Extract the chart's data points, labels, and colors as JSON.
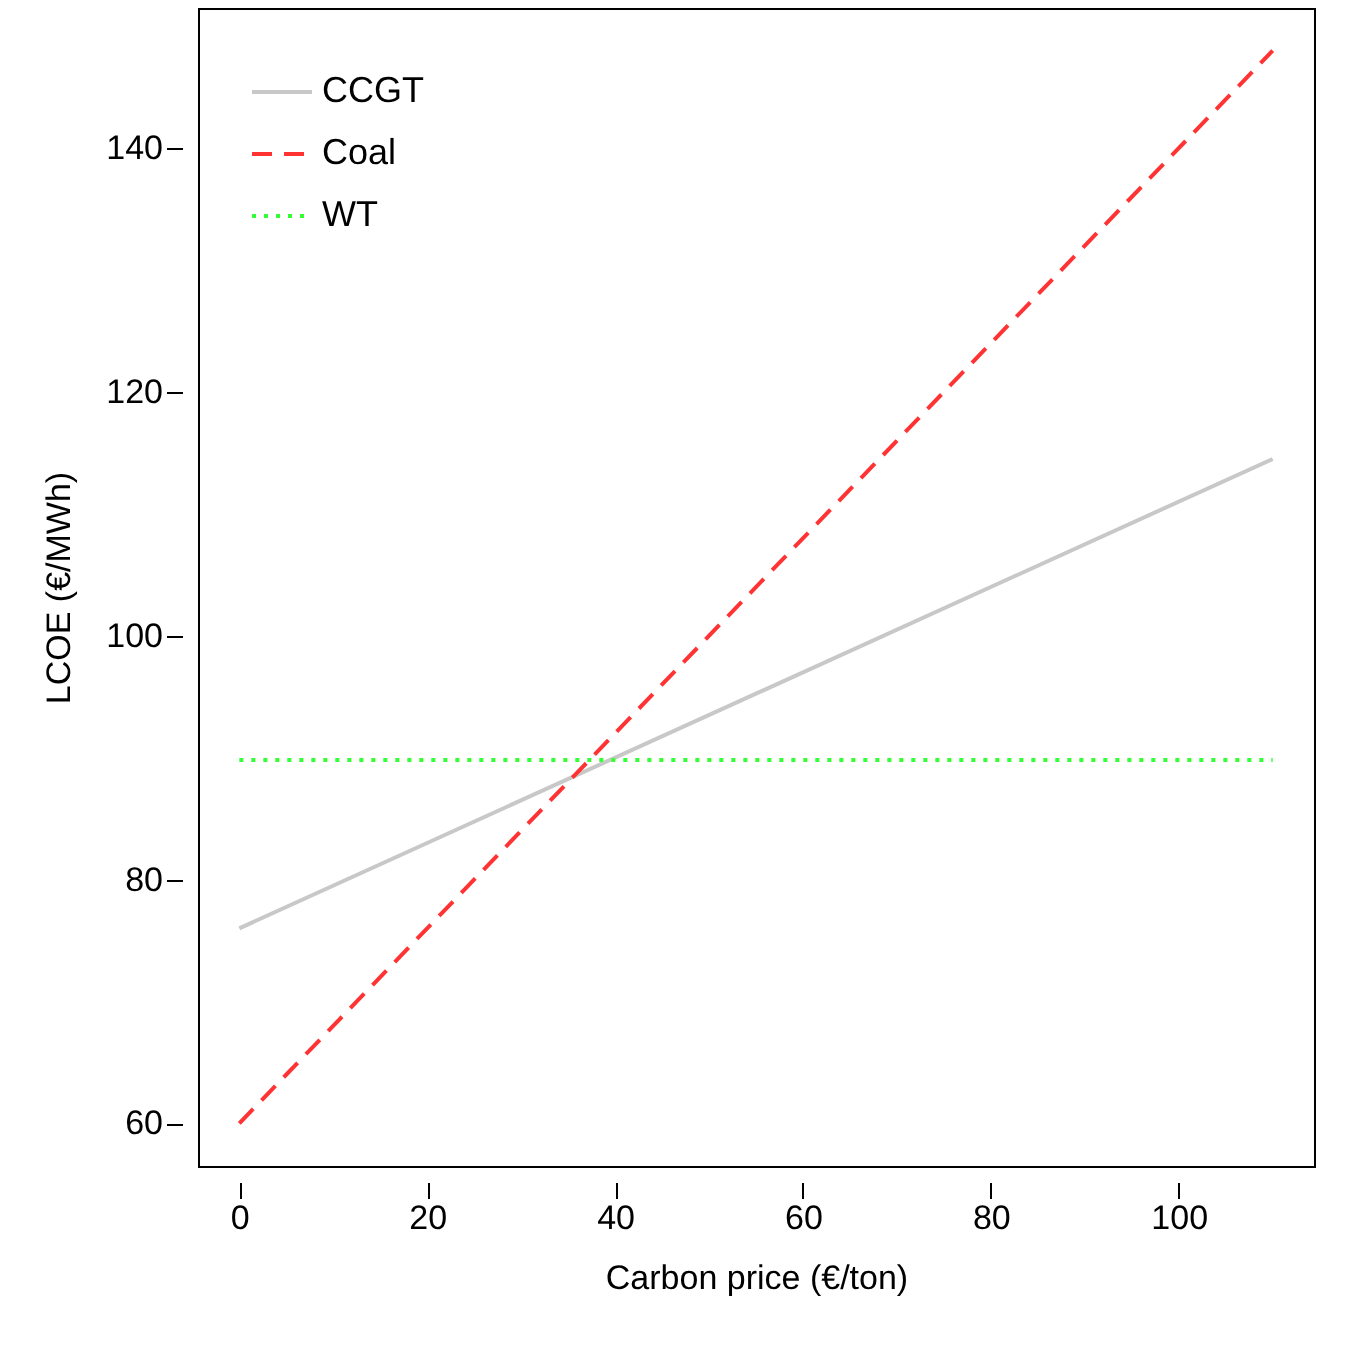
{
  "chart_data": {
    "type": "line",
    "xlabel": "Carbon price (€/ton)",
    "ylabel": "LCOE (€/MWh)",
    "x": [
      0,
      110
    ],
    "series": [
      {
        "name": "CCGT",
        "color": "#c8c8c8",
        "values": [
          76,
          114.5
        ],
        "line_style": "solid"
      },
      {
        "name": "Coal",
        "color": "#ff3333",
        "values": [
          60,
          148
        ],
        "line_style": "dashed"
      },
      {
        "name": "WT",
        "color": "#33ff33",
        "values": [
          89.8,
          89.8
        ],
        "line_style": "dotted"
      }
    ],
    "xlim": [
      -4.4,
      114.4
    ],
    "xticks": [
      0,
      20,
      40,
      60,
      80,
      100
    ],
    "ylim": [
      56.5,
      151.5
    ],
    "yticks": [
      60,
      80,
      100,
      120,
      140
    ],
    "grid": false,
    "legend": "top left",
    "marker": "none"
  }
}
